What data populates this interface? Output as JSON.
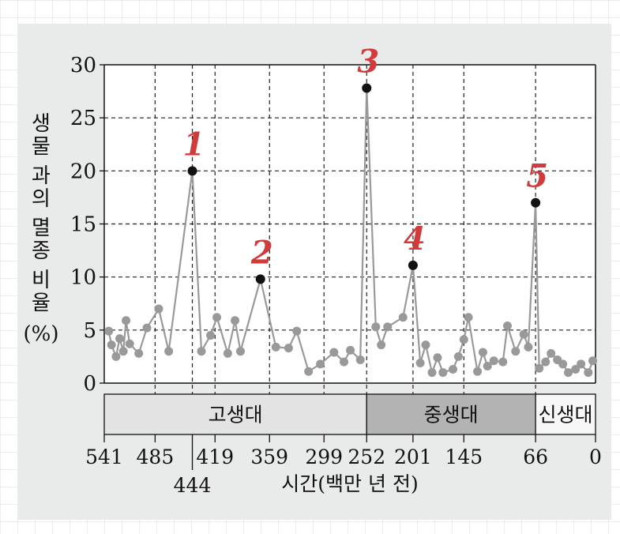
{
  "chart_data": {
    "type": "line",
    "ylabel": "생물 과의 멸종 비율 (%)",
    "xlabel": "시간(백만 년 전)",
    "ylim": [
      0,
      30
    ],
    "yticks": [
      "0",
      "5",
      "10",
      "15",
      "20",
      "25",
      "30"
    ],
    "xlim": [
      541,
      0
    ],
    "xticks": [
      {
        "value": 541,
        "label": "541"
      },
      {
        "value": 485,
        "label": "485"
      },
      {
        "value": 444,
        "label": "444"
      },
      {
        "value": 419,
        "label": "419"
      },
      {
        "value": 359,
        "label": "359"
      },
      {
        "value": 299,
        "label": "299"
      },
      {
        "value": 252,
        "label": "252"
      },
      {
        "value": 201,
        "label": "201"
      },
      {
        "value": 145,
        "label": "145"
      },
      {
        "value": 66,
        "label": "66"
      },
      {
        "value": 0,
        "label": "0"
      }
    ],
    "grid": true,
    "eras": [
      {
        "label": "고생대",
        "start": 541,
        "end": 252,
        "color": "#e3e3e3"
      },
      {
        "label": "중생대",
        "start": 252,
        "end": 66,
        "color": "#b3b3b3"
      },
      {
        "label": "신생대",
        "start": 66,
        "end": 0,
        "color": "#f7f7f7"
      }
    ],
    "series": [
      {
        "color": "#999999",
        "points": [
          [
            536,
            4.9
          ],
          [
            533,
            3.6
          ],
          [
            528,
            2.5
          ],
          [
            524,
            4.2
          ],
          [
            520,
            3.0
          ],
          [
            517,
            5.9
          ],
          [
            513,
            3.7
          ],
          [
            503,
            2.8
          ],
          [
            494,
            5.2
          ],
          [
            481,
            7.0
          ],
          [
            470,
            3.0
          ],
          [
            444,
            20.0
          ],
          [
            434,
            3.0
          ],
          [
            424,
            4.5
          ],
          [
            417,
            6.2
          ],
          [
            405,
            2.8
          ],
          [
            397,
            5.9
          ],
          [
            391,
            3.0
          ],
          [
            369,
            9.8
          ],
          [
            352,
            3.4
          ],
          [
            338,
            3.3
          ],
          [
            329,
            4.9
          ],
          [
            316,
            1.1
          ],
          [
            303,
            1.8
          ],
          [
            288,
            2.9
          ],
          [
            277,
            2.0
          ],
          [
            270,
            3.1
          ],
          [
            259,
            2.2
          ],
          [
            252,
            27.8
          ],
          [
            242,
            5.3
          ],
          [
            236,
            3.6
          ],
          [
            229,
            5.3
          ],
          [
            212,
            6.2
          ],
          [
            201,
            11.1
          ],
          [
            193,
            1.9
          ],
          [
            187,
            3.6
          ],
          [
            180,
            1.0
          ],
          [
            174,
            2.4
          ],
          [
            168,
            1.0
          ],
          [
            157,
            1.3
          ],
          [
            151,
            2.5
          ],
          [
            145,
            4.1
          ],
          [
            140,
            6.2
          ],
          [
            130,
            1.1
          ],
          [
            124,
            2.9
          ],
          [
            119,
            1.6
          ],
          [
            112,
            2.1
          ],
          [
            102,
            2.0
          ],
          [
            97,
            5.4
          ],
          [
            88,
            3.0
          ],
          [
            79,
            4.6
          ],
          [
            74,
            3.4
          ],
          [
            66,
            17.0
          ],
          [
            62,
            1.4
          ],
          [
            55,
            2.0
          ],
          [
            49,
            2.8
          ],
          [
            42,
            2.2
          ],
          [
            36,
            1.8
          ],
          [
            30,
            1.0
          ],
          [
            22,
            1.3
          ],
          [
            16,
            1.8
          ],
          [
            8,
            1.0
          ],
          [
            3,
            2.1
          ]
        ]
      }
    ],
    "highlights": [
      {
        "x": 444,
        "y": 20.0,
        "label": "1"
      },
      {
        "x": 369,
        "y": 9.8,
        "label": "2"
      },
      {
        "x": 252,
        "y": 27.8,
        "label": "3"
      },
      {
        "x": 201,
        "y": 11.1,
        "label": "4"
      },
      {
        "x": 66,
        "y": 17.0,
        "label": "5"
      }
    ],
    "annotation_color": "#d23b3b"
  }
}
